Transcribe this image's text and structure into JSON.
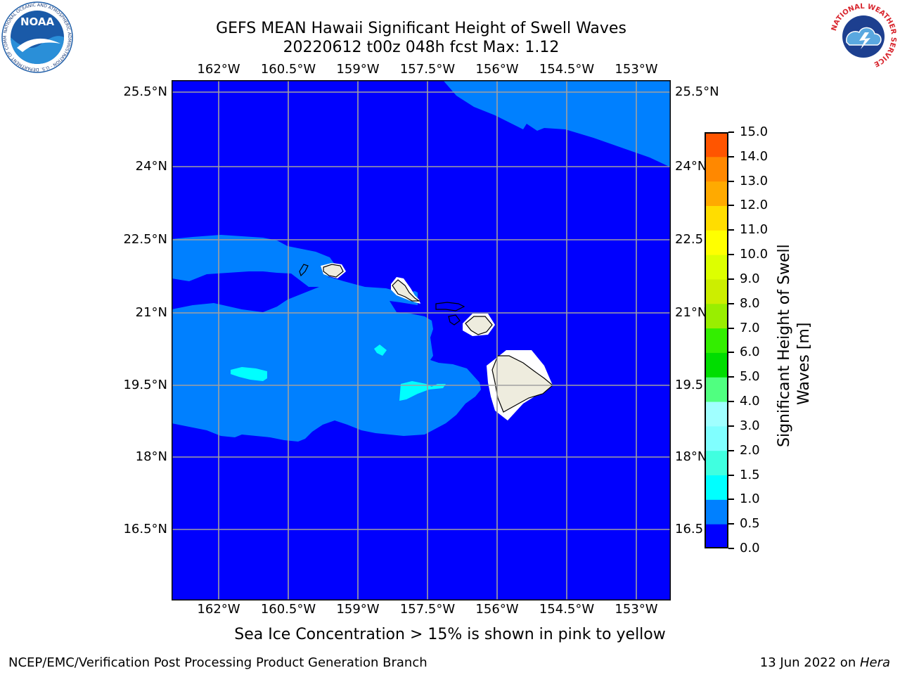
{
  "title": {
    "line1": "GEFS MEAN Hawaii Significant Height of Swell Waves",
    "line2": "20220612 t00z 048h fcst   Max: 1.12"
  },
  "logos": {
    "left": "noaa-logo",
    "left_text": "NOAA",
    "left_ring_text": "NATIONAL OCEANIC AND ATMOSPHERIC ADMINISTRATION · U.S. DEPARTMENT OF COMMERCE",
    "right": "national-weather-service-logo",
    "right_ring_text": "NATIONAL WEATHER SERVICE"
  },
  "map": {
    "lon_ticks": [
      "162°W",
      "160.5°W",
      "159°W",
      "157.5°W",
      "156°W",
      "154.5°W",
      "153°W"
    ],
    "lat_ticks_left": [
      "25.5°N",
      "24°N",
      "22.5°N",
      "21°N",
      "19.5°N",
      "18°N",
      "16.5°N"
    ],
    "lat_ticks_right": [
      "25.5°N",
      "24°N",
      "22.5",
      "21°N",
      "19.5",
      "18°N",
      "16.5"
    ],
    "colors": {
      "field_0_0_5": "#0000fe",
      "field_0_5_1_0": "#0080ff",
      "field_1_0_1_5": "#00ffff",
      "land": "#eeecde",
      "grid": "#a0a0a0"
    }
  },
  "colorbar": {
    "label": "Significant Height of Swell Waves [m]",
    "label_line1": "Significant Height of Swell",
    "label_line2": "Waves [m]",
    "ticks": [
      "15.0",
      "14.0",
      "13.0",
      "12.0",
      "11.0",
      "10.0",
      "9.0",
      "8.0",
      "7.0",
      "6.0",
      "5.0",
      "4.0",
      "3.0",
      "2.0",
      "1.5",
      "1.0",
      "0.5",
      "0.0"
    ],
    "colors_bottom_to_top": [
      "#0000ff",
      "#0080ff",
      "#00ffff",
      "#40ffe0",
      "#80ffff",
      "#a0ffff",
      "#50ff80",
      "#00dd00",
      "#33ee00",
      "#66ee00",
      "#99ee00",
      "#ccee00",
      "#ddff00",
      "#ffff00",
      "#ffdd00",
      "#ffaa00",
      "#ff8800",
      "#ff6600",
      "#ff3300",
      "#ff0000"
    ]
  },
  "notes": {
    "sea_ice": "Sea Ice Concentration > 15% is shown in pink to yellow"
  },
  "footer": {
    "left": "NCEP/EMC/Verification Post Processing Product Generation Branch",
    "right_date": "13 Jun 2022 on ",
    "right_host": "Hera"
  }
}
